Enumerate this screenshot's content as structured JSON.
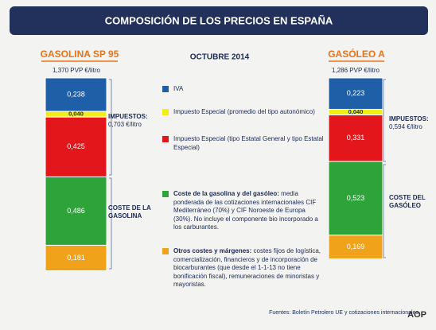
{
  "chart_data": {
    "type": "stacked-bar",
    "title": "COMPOSICIÓN DE LOS PRECIOS EN ESPAÑA",
    "subtitle": "OCTUBRE 2014",
    "categories": [
      "GASOLINA SP 95",
      "GASÓLEO A"
    ],
    "total_labels": [
      "1,370 PVP €/litro",
      "1,286 PVP €/litro"
    ],
    "series": [
      {
        "name": "IVA",
        "color": "#1f5fa8",
        "values": [
          0.238,
          0.223
        ],
        "value_labels": [
          "0,238",
          "0,223"
        ]
      },
      {
        "name": "Impuesto Especial (promedio del tipo autonómico)",
        "color": "#f2ee14",
        "values": [
          0.04,
          0.04
        ],
        "value_labels": [
          "0,040",
          "0,040"
        ]
      },
      {
        "name": "Impuesto Especial (tipo Estatal General y tipo Estatal Especial)",
        "color": "#e3161b",
        "values": [
          0.425,
          0.331
        ],
        "value_labels": [
          "0,425",
          "0,331"
        ]
      },
      {
        "name": "Coste de la gasolina y del gasóleo:",
        "description": "media ponderada de las cotizaciones internacionales CIF Mediterráneo (70%) y CIF Noroeste de Europa (30%). No incluye el componente bio incorporado a los carburantes.",
        "color": "#2ea339",
        "values": [
          0.486,
          0.523
        ],
        "value_labels": [
          "0,486",
          "0,523"
        ]
      },
      {
        "name": "Otros costes y márgenes:",
        "description": "costes fijos de logística, comercialización, financieros y de incorporación de biocarburantes (que desde el 1-1-13 no tiene bonificación fiscal), remuneraciones de minoristas y mayoristas.",
        "color": "#f0a21a",
        "values": [
          0.181,
          0.169
        ],
        "value_labels": [
          "0,181",
          "0,169"
        ]
      }
    ],
    "annotations": {
      "taxes_left": [
        "IMPUESTOS:",
        "0,703 €/litro"
      ],
      "cost_left": [
        "COSTE DE LA",
        "GASOLINA"
      ],
      "taxes_right": [
        "IMPUESTOS:",
        "0,594 €/litro"
      ],
      "cost_right": [
        "COSTE DEL",
        "GASÓLEO"
      ]
    },
    "source": "Fuentes: Boletín Petrolero UE y cotizaciones internacionales",
    "logo": "AOP"
  }
}
